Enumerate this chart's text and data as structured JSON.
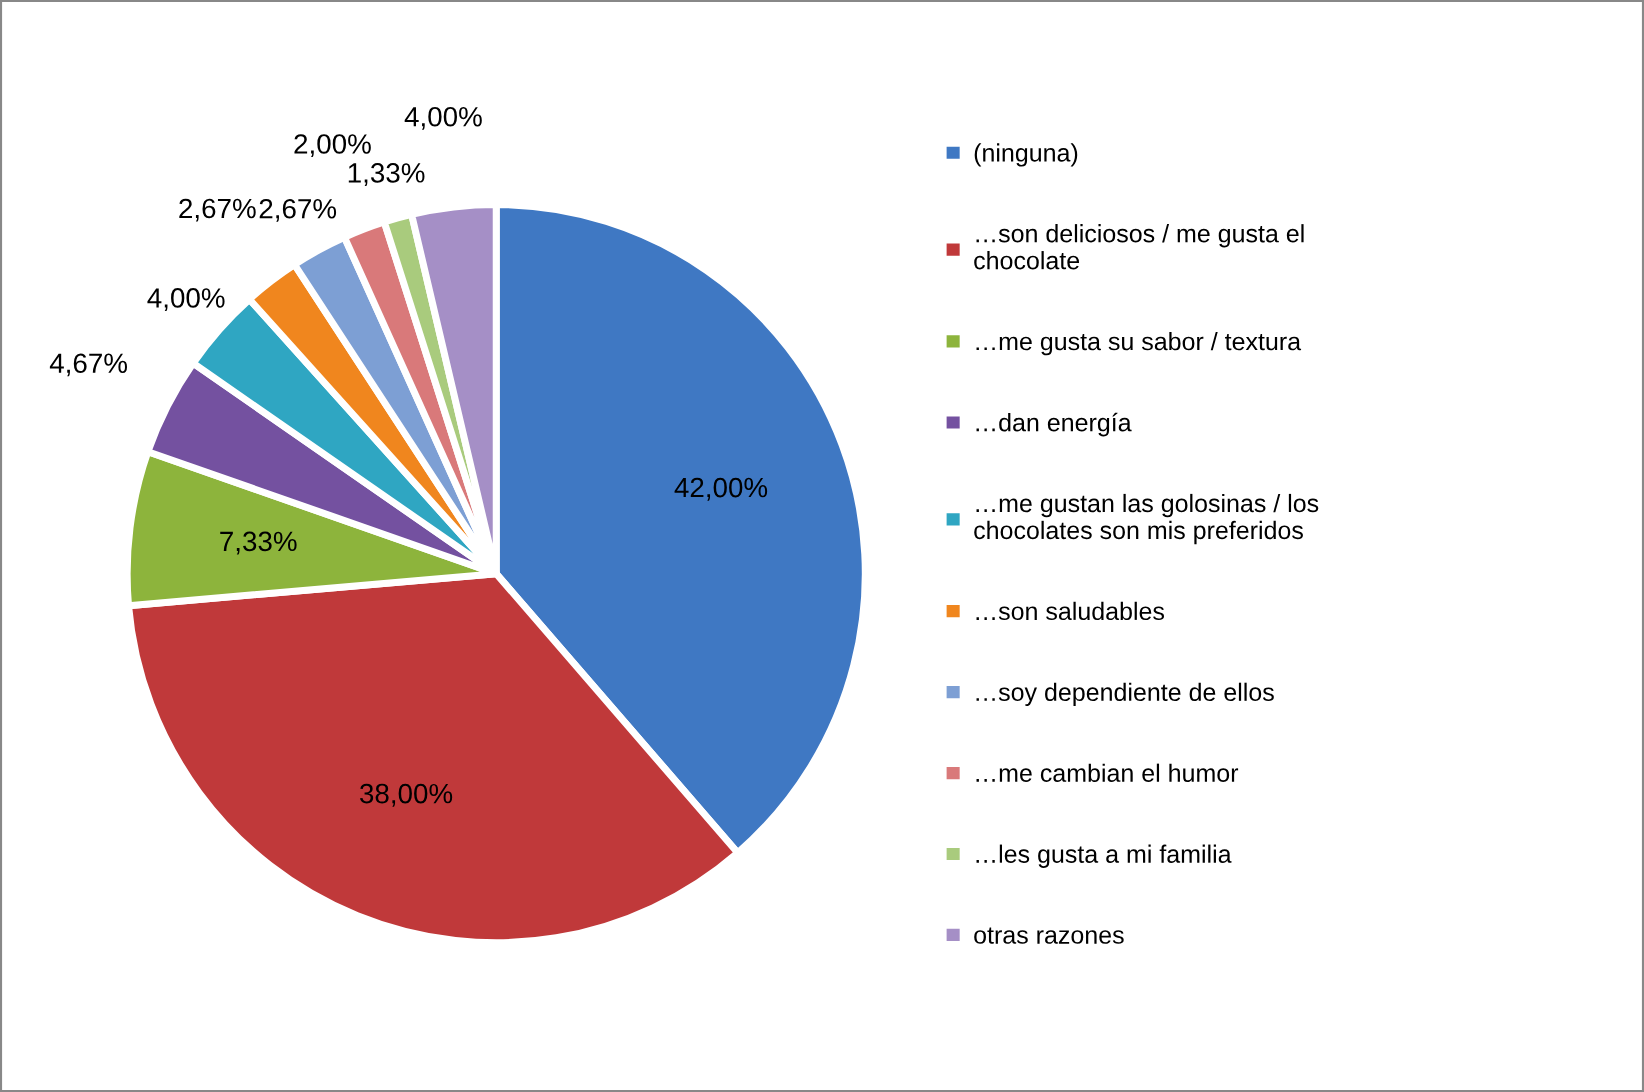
{
  "chart_data": {
    "type": "pie",
    "categories": [
      "(ninguna)",
      "…son deliciosos / me gusta el chocolate",
      "…me gusta su sabor / textura",
      "…dan energía",
      "…me gustan las golosinas / los chocolates son mis preferidos",
      "…son saludables",
      "…soy dependiente de ellos",
      "…me cambian el humor",
      "…les gusta a mi familia",
      "otras razones"
    ],
    "values": [
      42,
      38,
      7.33,
      4.67,
      4,
      2.67,
      2.67,
      2,
      1.33,
      4
    ],
    "value_labels": [
      "42,00%",
      "38,00%",
      "7,33%",
      "4,67%",
      "4,00%",
      "2,67%",
      "2,67%",
      "2,00%",
      "1,33%",
      "4,00%"
    ],
    "colors": [
      "#3f78c3",
      "#c0393a",
      "#8db43c",
      "#7451a0",
      "#2fa6c2",
      "#f0861e",
      "#7d9fd4",
      "#d9797a",
      "#a9cb7d",
      "#a58fc6"
    ],
    "legend": "right"
  }
}
